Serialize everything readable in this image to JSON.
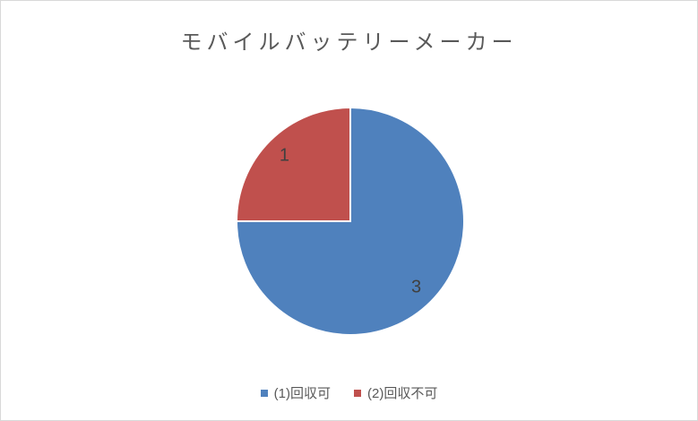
{
  "chart_data": {
    "type": "pie",
    "title": "モバイルバッテリーメーカー",
    "categories": [
      "(1)回収可",
      "(2)回収不可"
    ],
    "values": [
      3,
      1
    ],
    "data_labels": [
      "3",
      "1"
    ],
    "colors": [
      "#4F81BD",
      "#C0504D"
    ],
    "slice_border_color": "#FFFFFF",
    "start_angle_deg": 0,
    "direction": "clockwise",
    "legend_position": "bottom",
    "title_color": "#595959",
    "data_label_color": "#404040",
    "legend_text_color": "#595959",
    "background_color": "#FFFFFF",
    "frame_border_color": "#D9D9D9"
  }
}
